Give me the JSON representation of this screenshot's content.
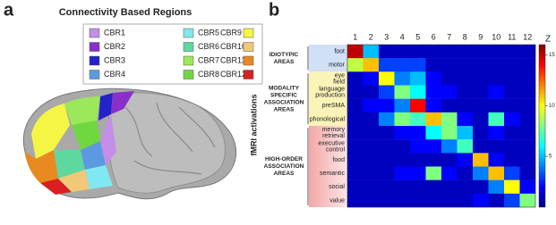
{
  "panel_a": {
    "label": "a",
    "title": "Connectivity Based Regions",
    "regions": [
      {
        "name": "CBR1",
        "color": "#c58ee8"
      },
      {
        "name": "CBR2",
        "color": "#8b2fc9"
      },
      {
        "name": "CBR3",
        "color": "#2323c8"
      },
      {
        "name": "CBR4",
        "color": "#5b9ae0"
      },
      {
        "name": "CBR5",
        "color": "#7fe8f0"
      },
      {
        "name": "CBR6",
        "color": "#5fd8a0"
      },
      {
        "name": "CBR7",
        "color": "#9be85a"
      },
      {
        "name": "CBR8",
        "color": "#6fd840"
      },
      {
        "name": "CBR9",
        "color": "#f5f545"
      },
      {
        "name": "CBR10",
        "color": "#f0c878"
      },
      {
        "name": "CBR11",
        "color": "#e88a20"
      },
      {
        "name": "CBR12",
        "color": "#d82020"
      }
    ]
  },
  "chart_data": {
    "type": "heatmap",
    "panel_label": "b",
    "y_label": "fMRI activations",
    "categories": [
      1,
      2,
      3,
      4,
      5,
      6,
      7,
      8,
      9,
      10,
      11,
      12
    ],
    "rows": [
      "foot",
      "motor",
      "eye field",
      "language production",
      "preSMA",
      "phonological",
      "memory retrieval",
      "executive control",
      "food",
      "semantic",
      "social",
      "value"
    ],
    "groups": [
      {
        "lines": [
          "IDIOTYPIC",
          "AREAS"
        ],
        "rows": [
          0,
          1
        ],
        "color": "#cfe0f7"
      },
      {
        "lines": [
          "MODALITY",
          "SPECIFIC",
          "ASSOCIATION",
          "AREAS"
        ],
        "rows": [
          2,
          5
        ],
        "color": "#fbf3b8"
      },
      {
        "lines": [
          "HIGH-ORDER",
          "ASSOCIATION",
          "AREAS"
        ],
        "rows": [
          6,
          11
        ],
        "color": "#f6b9b9"
      }
    ],
    "values": [
      [
        15,
        5,
        1,
        1,
        1,
        1,
        1,
        1,
        1,
        1,
        1,
        1
      ],
      [
        9,
        11,
        3,
        3,
        3,
        1,
        1,
        1,
        1,
        1,
        1,
        1
      ],
      [
        1,
        2,
        10,
        4,
        5,
        2,
        1,
        1,
        1,
        1,
        1,
        1
      ],
      [
        1,
        1,
        3,
        8,
        6,
        2,
        2,
        1,
        1,
        2,
        1,
        1
      ],
      [
        1,
        2,
        2,
        4,
        14,
        2,
        1,
        1,
        1,
        1,
        1,
        1
      ],
      [
        1,
        1,
        4,
        8,
        7,
        11,
        8,
        2,
        1,
        7,
        2,
        1
      ],
      [
        1,
        1,
        1,
        2,
        2,
        6,
        8,
        5,
        1,
        2,
        1,
        1
      ],
      [
        1,
        1,
        1,
        1,
        2,
        2,
        4,
        7,
        1,
        1,
        1,
        1
      ],
      [
        1,
        1,
        1,
        1,
        1,
        1,
        1,
        2,
        11,
        2,
        1,
        1
      ],
      [
        1,
        1,
        1,
        2,
        2,
        8,
        2,
        1,
        4,
        11,
        3,
        1
      ],
      [
        1,
        1,
        1,
        1,
        1,
        1,
        1,
        1,
        1,
        4,
        10,
        2
      ],
      [
        1,
        1,
        1,
        1,
        1,
        1,
        1,
        1,
        2,
        1,
        3,
        8
      ]
    ],
    "zlim": [
      0,
      16
    ],
    "zticks": [
      5,
      10,
      15
    ],
    "colorbar_label": "Z"
  }
}
